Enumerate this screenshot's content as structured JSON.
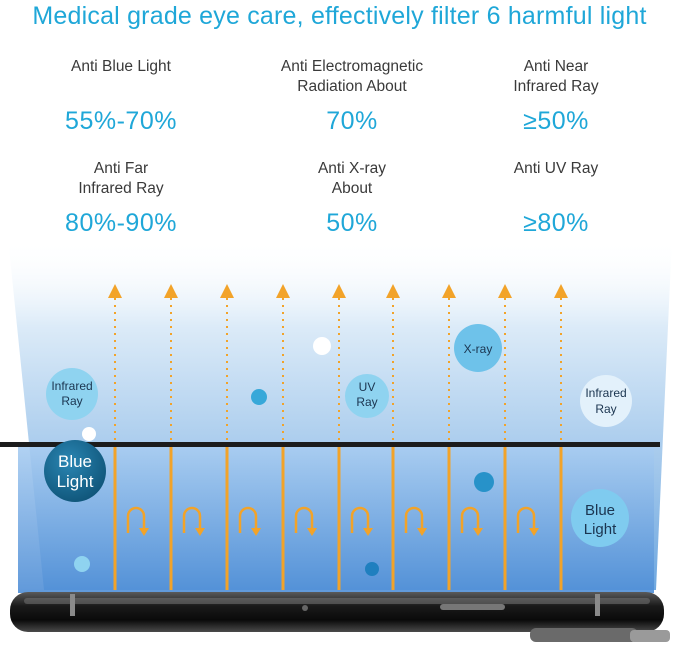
{
  "headline": "Medical grade eye care, effectively filter 6 harmful light",
  "stats": [
    {
      "label_lines": [
        "Anti Blue Light"
      ],
      "value": "55%-70%"
    },
    {
      "label_lines": [
        "Anti Electromagnetic",
        "Radiation About"
      ],
      "value": "70%"
    },
    {
      "label_lines": [
        "Anti Near",
        "Infrared Ray"
      ],
      "value": "≥50%"
    },
    {
      "label_lines": [
        "Anti Far",
        "Infrared Ray"
      ],
      "value": "80%-90%"
    },
    {
      "label_lines": [
        "Anti X-ray",
        "About"
      ],
      "value": "50%"
    },
    {
      "label_lines": [
        "Anti UV Ray"
      ],
      "value": "≥80%"
    }
  ],
  "bubbles": {
    "infrared_left": [
      "Infrared",
      "Ray"
    ],
    "uv": [
      "UV",
      "Ray"
    ],
    "xray": [
      "X-ray"
    ],
    "infrared_right": [
      "Infrared",
      "Ray"
    ],
    "blue_left": [
      "Blue",
      "Light"
    ],
    "blue_right": [
      "Blue",
      "Light"
    ]
  },
  "colors": {
    "accent_blue": "#1fa7d8",
    "arrow_orange": "#f2a329",
    "dark_bubble": "#1a6f96",
    "text_gray": "#3a3a3a"
  }
}
